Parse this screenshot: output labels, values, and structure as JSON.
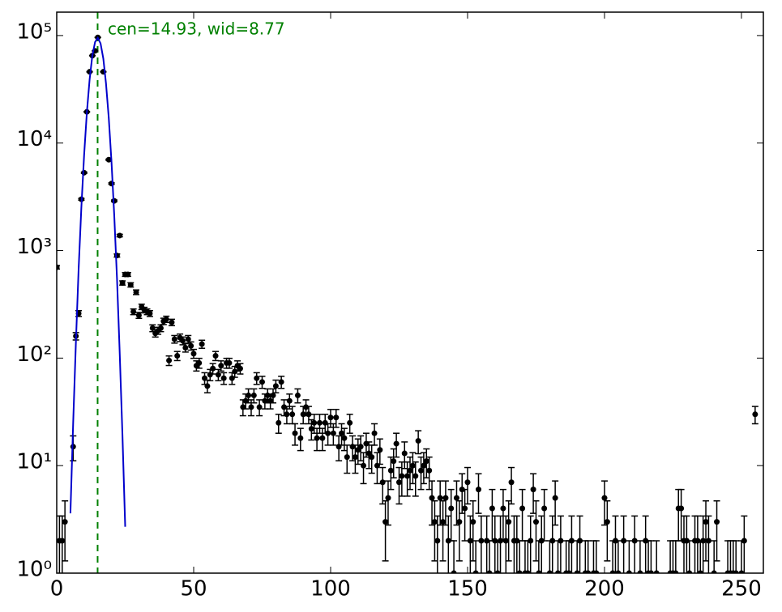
{
  "chart_data": {
    "type": "scatter",
    "ylog": true,
    "xlim": [
      0,
      258
    ],
    "ylim": [
      1,
      165000
    ],
    "xticks": [
      0,
      50,
      100,
      150,
      200,
      250
    ],
    "yticks": [
      {
        "value": 1,
        "label": "10⁰"
      },
      {
        "value": 10,
        "label": "10¹"
      },
      {
        "value": 100,
        "label": "10²"
      },
      {
        "value": 1000,
        "label": "10³"
      },
      {
        "value": 10000,
        "label": "10⁴"
      },
      {
        "value": 100000,
        "label": "10⁵"
      }
    ],
    "annotation": "cen=14.93, wid=8.77",
    "vline": {
      "x": 14.93,
      "color": "#008000"
    },
    "series": [
      {
        "type": "errorbar",
        "color": "#000000",
        "x": [
          0,
          1,
          2,
          3,
          6,
          7,
          8,
          9,
          10,
          11,
          12,
          13,
          14,
          15,
          17,
          19,
          20,
          21,
          22,
          23,
          24,
          25,
          26,
          27,
          28,
          29,
          30,
          31,
          32,
          33,
          34,
          35,
          36,
          37,
          38,
          39,
          40,
          41,
          42,
          43,
          44,
          45,
          46,
          47,
          48,
          49,
          50,
          51,
          52,
          53,
          54,
          55,
          56,
          57,
          58,
          59,
          60,
          61,
          62,
          63,
          64,
          65,
          66,
          67,
          68,
          69,
          70,
          71,
          72,
          73,
          74,
          75,
          76,
          77,
          78,
          79,
          80,
          81,
          82,
          83,
          84,
          85,
          86,
          87,
          88,
          89,
          90,
          91,
          92,
          93,
          94,
          95,
          96,
          97,
          98,
          99,
          100,
          101,
          102,
          103,
          104,
          105,
          106,
          107,
          108,
          109,
          110,
          111,
          112,
          113,
          114,
          115,
          116,
          117,
          118,
          119,
          120,
          121,
          122,
          123,
          124,
          125,
          126,
          127,
          128,
          129,
          130,
          131,
          132,
          133,
          134,
          135,
          136,
          137,
          138,
          139,
          140,
          141,
          142,
          143,
          144,
          145,
          146,
          147,
          148,
          149,
          150,
          151,
          152,
          153,
          154,
          155,
          157,
          158,
          159,
          160,
          161,
          162,
          163,
          164,
          165,
          166,
          167,
          168,
          169,
          170,
          171,
          172,
          173,
          174,
          175,
          176,
          177,
          178,
          180,
          181,
          182,
          183,
          184,
          186,
          187,
          188,
          190,
          191,
          193,
          194,
          196,
          197,
          200,
          201,
          203,
          204,
          205,
          207,
          209,
          211,
          213,
          215,
          216,
          217,
          219,
          224,
          225,
          226,
          227,
          228,
          229,
          230,
          231,
          233,
          234,
          235,
          236,
          237,
          238,
          240,
          241,
          245,
          246,
          247,
          248,
          250,
          251,
          255
        ],
        "values": [
          700,
          2,
          2,
          3,
          15,
          160,
          260,
          3000,
          5300,
          19500,
          46000,
          65000,
          72000,
          96000,
          46000,
          7000,
          4200,
          2900,
          900,
          1380,
          500,
          600,
          600,
          480,
          270,
          410,
          250,
          300,
          280,
          270,
          260,
          190,
          170,
          180,
          190,
          220,
          230,
          95,
          215,
          150,
          105,
          155,
          145,
          125,
          150,
          130,
          110,
          85,
          90,
          135,
          65,
          55,
          70,
          80,
          105,
          70,
          85,
          65,
          90,
          90,
          65,
          75,
          85,
          80,
          35,
          40,
          45,
          35,
          45,
          65,
          35,
          60,
          40,
          45,
          40,
          45,
          55,
          25,
          60,
          35,
          30,
          40,
          30,
          20,
          45,
          18,
          30,
          35,
          30,
          22,
          25,
          18,
          25,
          18,
          25,
          20,
          28,
          20,
          28,
          15,
          20,
          18,
          12,
          25,
          15,
          12,
          14,
          15,
          10,
          16,
          13,
          12,
          20,
          10,
          14,
          7,
          3,
          5,
          9,
          11,
          16,
          7,
          8,
          13,
          8,
          9,
          10,
          8,
          17,
          9,
          10,
          11,
          9,
          5,
          3,
          2,
          5,
          3,
          5,
          2,
          4,
          1,
          5,
          3,
          6,
          4,
          7,
          2,
          3,
          1,
          6,
          2,
          2,
          1,
          4,
          2,
          1,
          2,
          4,
          2,
          3,
          7,
          2,
          2,
          1,
          4,
          1,
          1,
          2,
          6,
          3,
          1,
          2,
          4,
          1,
          2,
          5,
          1,
          2,
          1,
          1,
          2,
          1,
          2,
          1,
          1,
          1,
          1,
          5,
          3,
          1,
          2,
          1,
          2,
          1,
          2,
          1,
          2,
          1,
          1,
          1,
          1,
          1,
          1,
          4,
          4,
          2,
          2,
          1,
          2,
          2,
          1,
          2,
          3,
          2,
          1,
          3,
          1,
          1,
          1,
          1,
          1,
          2,
          30
        ],
        "errors": [
          26.5,
          1.4,
          1.4,
          1.7,
          3.9,
          12.6,
          16.1,
          54.8,
          72.8,
          139.6,
          214.5,
          255,
          268.3,
          309.8,
          214.5,
          83.7,
          64.8,
          53.9,
          30,
          37.1,
          22.4,
          24.5,
          24.5,
          21.9,
          16.4,
          20.2,
          15.8,
          17.3,
          16.7,
          16.4,
          16.1,
          13.8,
          13,
          13.4,
          13.8,
          14.8,
          15.2,
          9.7,
          14.7,
          12.2,
          10.2,
          12.4,
          12,
          11.2,
          12.2,
          11.4,
          10.5,
          9.2,
          9.5,
          11.6,
          8.1,
          7.4,
          8.4,
          8.9,
          10.2,
          8.4,
          9.2,
          8.1,
          9.5,
          9.5,
          8.1,
          8.7,
          9.2,
          8.9,
          5.9,
          6.3,
          6.7,
          5.9,
          6.7,
          8.1,
          5.9,
          7.7,
          6.3,
          6.7,
          6.3,
          6.7,
          7.4,
          5,
          7.7,
          5.9,
          5.5,
          6.3,
          5.5,
          4.5,
          6.7,
          4.2,
          5.5,
          5.9,
          5.5,
          4.7,
          5,
          4.2,
          5,
          4.2,
          5,
          4.5,
          5.3,
          4.5,
          5.3,
          3.9,
          4.5,
          4.2,
          3.5,
          5,
          3.9,
          3.5,
          3.7,
          3.9,
          3.2,
          4,
          3.6,
          3.5,
          4.5,
          3.2,
          3.7,
          2.6,
          1.7,
          2.2,
          3,
          3.3,
          4,
          2.6,
          2.8,
          3.6,
          2.8,
          3,
          3.2,
          2.8,
          4.1,
          3,
          3.2,
          3.3,
          3,
          2.2,
          1.7,
          1.4,
          2.2,
          1.7,
          2.2,
          1.4,
          2,
          1,
          2.2,
          1.7,
          2.4,
          2,
          2.6,
          1.4,
          1.7,
          1,
          2.4,
          1.4,
          1.4,
          1,
          2,
          1.4,
          1,
          1.4,
          2,
          1.4,
          1.7,
          2.6,
          1.4,
          1.4,
          1,
          2,
          1,
          1,
          1.4,
          2.4,
          1.7,
          1,
          1.4,
          2,
          1,
          1.4,
          2.2,
          1,
          1.4,
          1,
          1,
          1.4,
          1,
          1.4,
          1,
          1,
          1,
          1,
          2.2,
          1.7,
          1,
          1.4,
          1,
          1.4,
          1,
          1.4,
          1,
          1.4,
          1,
          1,
          1,
          1,
          1,
          1,
          2,
          2,
          1.4,
          1.4,
          1,
          1.4,
          1.4,
          1,
          1.4,
          1.7,
          1.4,
          1,
          1.7,
          1,
          1,
          1,
          1,
          1,
          1.4,
          5.5
        ]
      },
      {
        "type": "line",
        "color": "#0000cc",
        "x": [
          5,
          6,
          7,
          8,
          9,
          10,
          11,
          12,
          13,
          14,
          15,
          16,
          17,
          18,
          19,
          20,
          21,
          22,
          23,
          24,
          25
        ],
        "values": [
          3.6,
          25,
          143,
          667,
          2520,
          7720,
          19300,
          39100,
          64700,
          86900,
          95000,
          84400,
          61000,
          35900,
          17200,
          6650,
          2110,
          544,
          113,
          19.3,
          2.7
        ]
      }
    ]
  }
}
